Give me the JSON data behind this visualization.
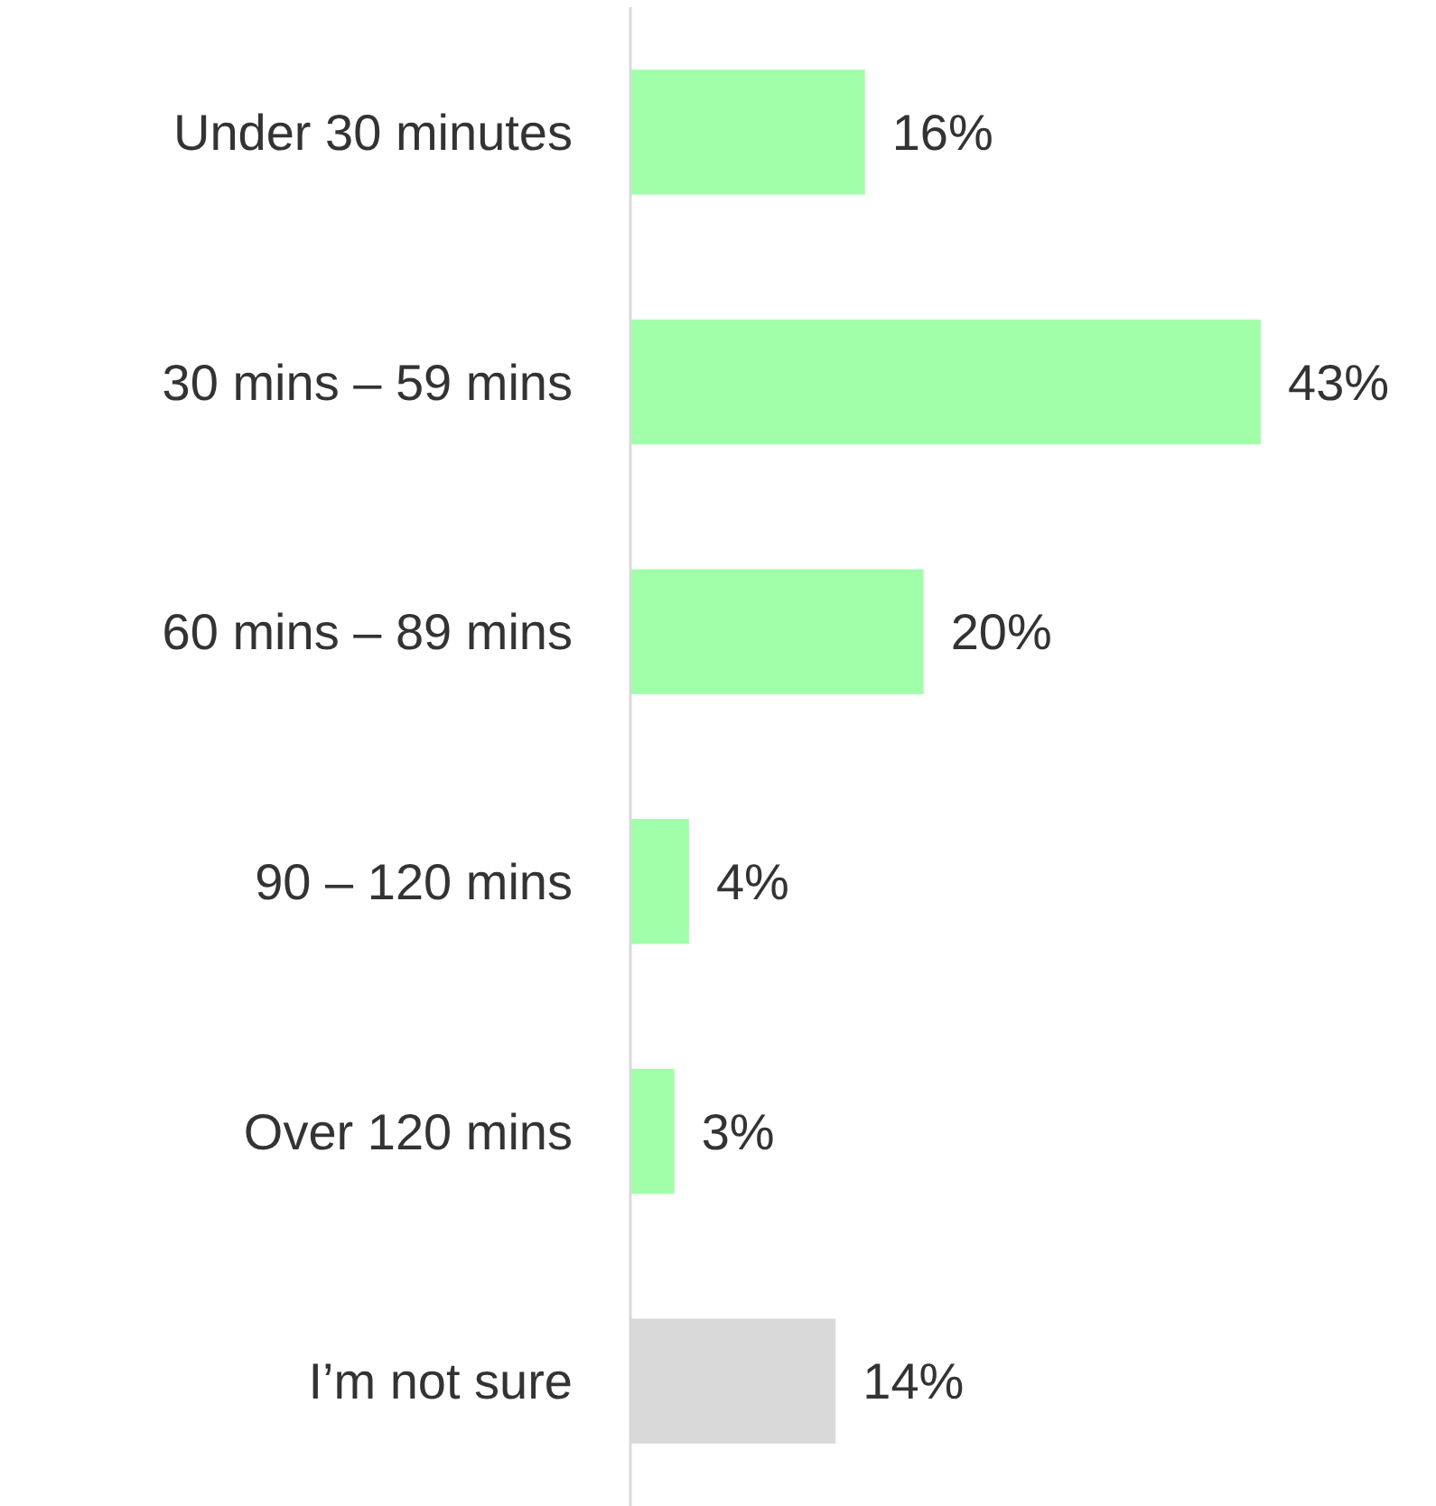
{
  "chart_data": {
    "type": "bar",
    "orientation": "horizontal",
    "categories": [
      "Under 30 minutes",
      "30 mins – 59 mins",
      "60 mins – 89 mins",
      "90 – 120 mins",
      "Over 120 mins",
      "I’m not sure"
    ],
    "values": [
      16,
      43,
      20,
      4,
      3,
      14
    ],
    "value_labels": [
      "16%",
      "43%",
      "20%",
      "4%",
      "3%",
      "14%"
    ],
    "colors": [
      "#a0ffa8",
      "#a0ffa8",
      "#a0ffa8",
      "#a0ffa8",
      "#a0ffa8",
      "#d9d9d9"
    ],
    "relative": false
  }
}
